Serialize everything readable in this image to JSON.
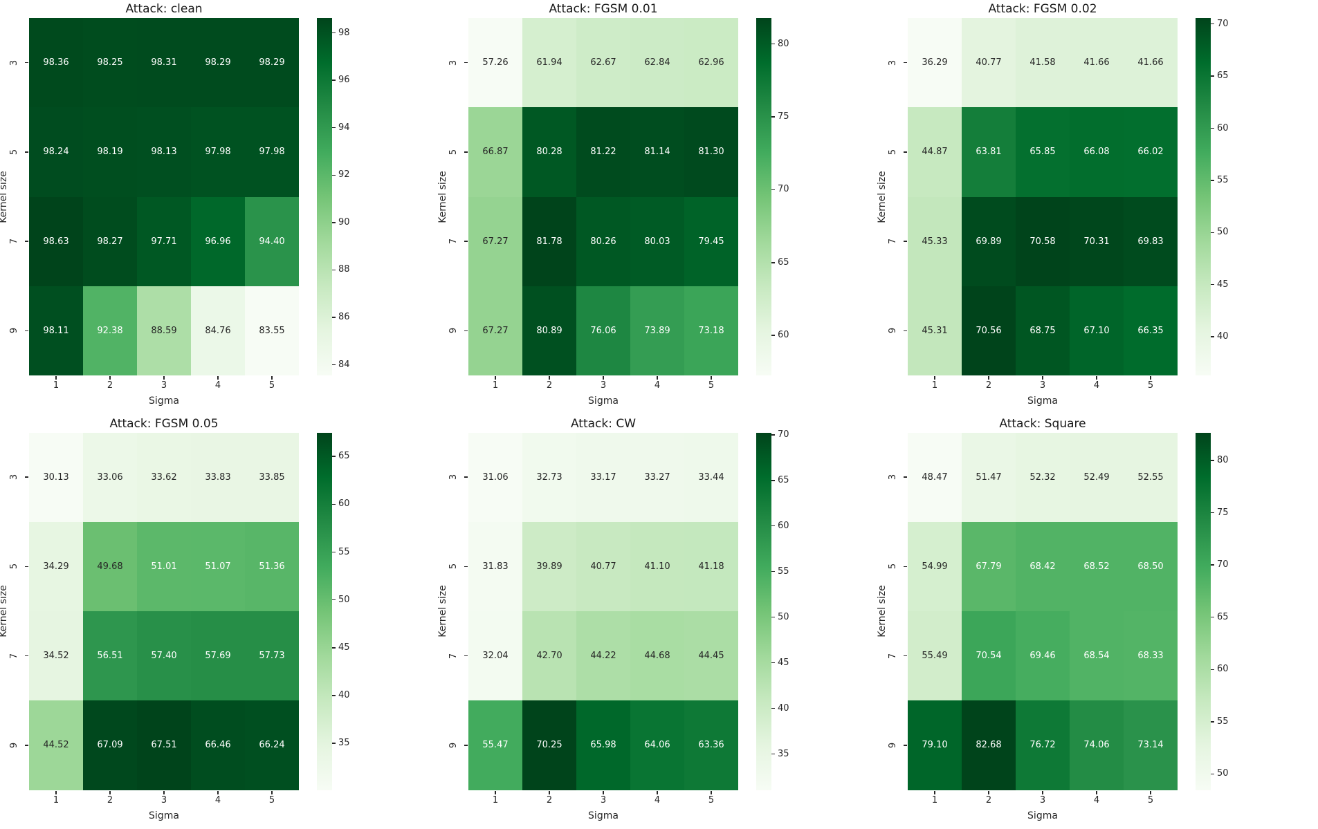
{
  "figure": {
    "background": "#ffffff",
    "colormap": {
      "name": "Greens",
      "anchors": [
        "#f7fcf5",
        "#e5f5e0",
        "#c7e9c0",
        "#a1d99b",
        "#74c476",
        "#41ab5d",
        "#238b45",
        "#006d2c",
        "#00441b"
      ]
    },
    "annotation_text_dark": "#262626",
    "annotation_text_light": "#ffffff",
    "axis_text_color": "#262626"
  },
  "chart_data": [
    {
      "type": "heatmap",
      "title": "Attack: clean",
      "xlabel": "Sigma",
      "ylabel": "Kernel size",
      "x_ticks": [
        "1",
        "2",
        "3",
        "4",
        "5"
      ],
      "y_ticks": [
        "3",
        "5",
        "7",
        "9"
      ],
      "values": [
        [
          98.36,
          98.25,
          98.31,
          98.29,
          98.29
        ],
        [
          98.24,
          98.19,
          98.13,
          97.98,
          97.98
        ],
        [
          98.63,
          98.27,
          97.71,
          96.96,
          94.4
        ],
        [
          98.11,
          92.38,
          88.59,
          84.76,
          83.55
        ]
      ],
      "colorbar_ticks": [
        84,
        86,
        88,
        90,
        92,
        94,
        96,
        98
      ]
    },
    {
      "type": "heatmap",
      "title": "Attack: FGSM 0.01",
      "xlabel": "Sigma",
      "ylabel": "Kernel size",
      "x_ticks": [
        "1",
        "2",
        "3",
        "4",
        "5"
      ],
      "y_ticks": [
        "3",
        "5",
        "7",
        "9"
      ],
      "values": [
        [
          57.26,
          61.94,
          62.67,
          62.84,
          62.96
        ],
        [
          66.87,
          80.28,
          81.22,
          81.14,
          81.3
        ],
        [
          67.27,
          81.78,
          80.26,
          80.03,
          79.45
        ],
        [
          67.27,
          80.89,
          76.06,
          73.89,
          73.18
        ]
      ],
      "colorbar_ticks": [
        60,
        65,
        70,
        75,
        80
      ]
    },
    {
      "type": "heatmap",
      "title": "Attack: FGSM 0.02",
      "xlabel": "Sigma",
      "ylabel": "Kernel size",
      "x_ticks": [
        "1",
        "2",
        "3",
        "4",
        "5"
      ],
      "y_ticks": [
        "3",
        "5",
        "7",
        "9"
      ],
      "values": [
        [
          36.29,
          40.77,
          41.58,
          41.66,
          41.66
        ],
        [
          44.87,
          63.81,
          65.85,
          66.08,
          66.02
        ],
        [
          45.33,
          69.89,
          70.58,
          70.31,
          69.83
        ],
        [
          45.31,
          70.56,
          68.75,
          67.1,
          66.35
        ]
      ],
      "colorbar_ticks": [
        40,
        45,
        50,
        55,
        60,
        65,
        70
      ]
    },
    {
      "type": "heatmap",
      "title": "Attack: FGSM 0.05",
      "xlabel": "Sigma",
      "ylabel": "Kernel size",
      "x_ticks": [
        "1",
        "2",
        "3",
        "4",
        "5"
      ],
      "y_ticks": [
        "3",
        "5",
        "7",
        "9"
      ],
      "values": [
        [
          30.13,
          33.06,
          33.62,
          33.83,
          33.85
        ],
        [
          34.29,
          49.68,
          51.01,
          51.07,
          51.36
        ],
        [
          34.52,
          56.51,
          57.4,
          57.69,
          57.73
        ],
        [
          44.52,
          67.09,
          67.51,
          66.46,
          66.24
        ]
      ],
      "colorbar_ticks": [
        35,
        40,
        45,
        50,
        55,
        60,
        65
      ]
    },
    {
      "type": "heatmap",
      "title": "Attack: CW",
      "xlabel": "Sigma",
      "ylabel": "Kernel size",
      "x_ticks": [
        "1",
        "2",
        "3",
        "4",
        "5"
      ],
      "y_ticks": [
        "3",
        "5",
        "7",
        "9"
      ],
      "values": [
        [
          31.06,
          32.73,
          33.17,
          33.27,
          33.44
        ],
        [
          31.83,
          39.89,
          40.77,
          41.1,
          41.18
        ],
        [
          32.04,
          42.7,
          44.22,
          44.68,
          44.45
        ],
        [
          55.47,
          70.25,
          65.98,
          64.06,
          63.36
        ]
      ],
      "colorbar_ticks": [
        35,
        40,
        45,
        50,
        55,
        60,
        65,
        70
      ]
    },
    {
      "type": "heatmap",
      "title": "Attack: Square",
      "xlabel": "Sigma",
      "ylabel": "Kernel size",
      "x_ticks": [
        "1",
        "2",
        "3",
        "4",
        "5"
      ],
      "y_ticks": [
        "3",
        "5",
        "7",
        "9"
      ],
      "values": [
        [
          48.47,
          51.47,
          52.32,
          52.49,
          52.55
        ],
        [
          54.99,
          67.79,
          68.42,
          68.52,
          68.5
        ],
        [
          55.49,
          70.54,
          69.46,
          68.54,
          68.33
        ],
        [
          79.1,
          82.68,
          76.72,
          74.06,
          73.14
        ]
      ],
      "colorbar_ticks": [
        50,
        55,
        60,
        65,
        70,
        75,
        80
      ]
    }
  ]
}
